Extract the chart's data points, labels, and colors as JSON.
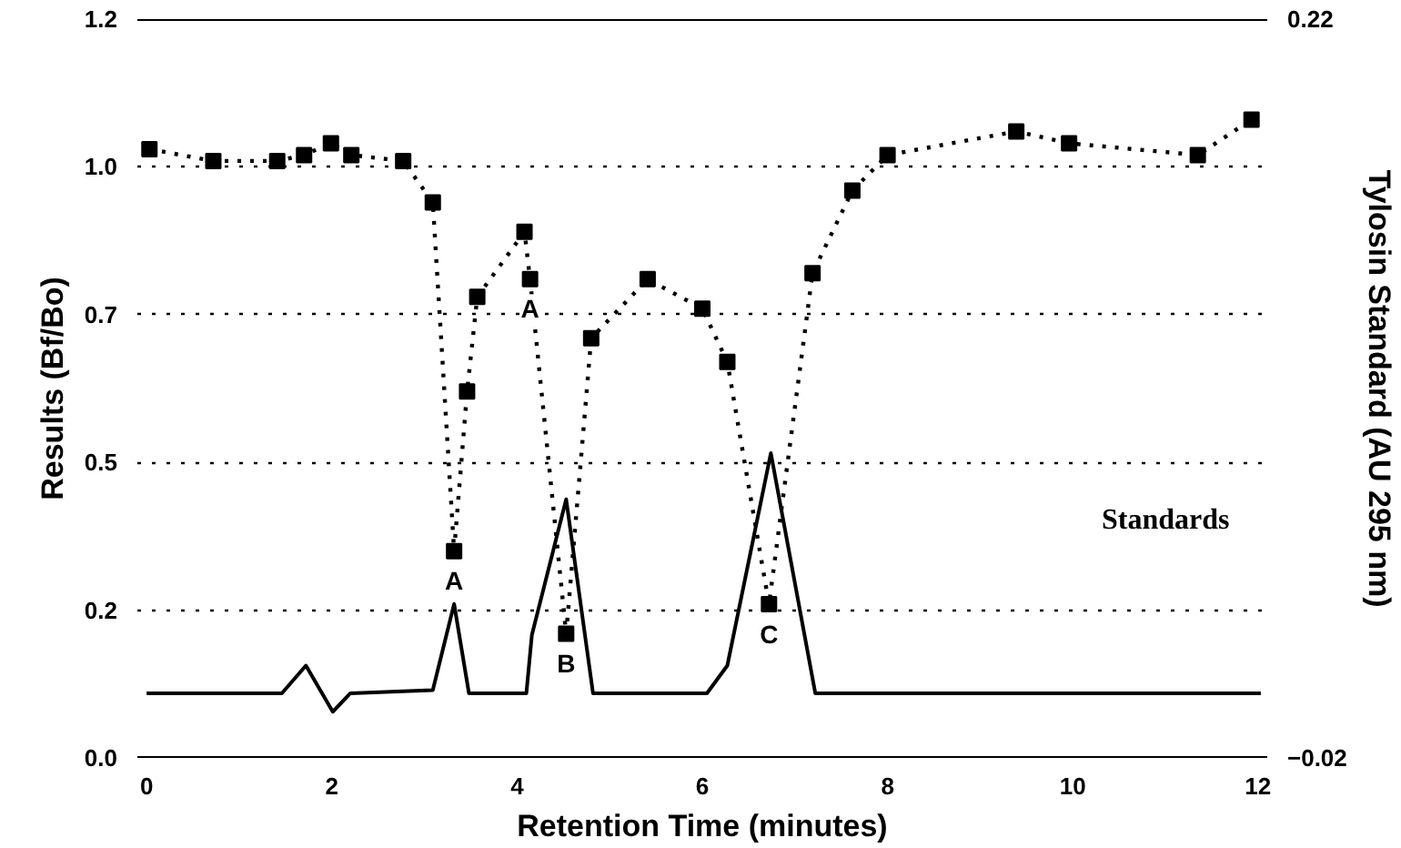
{
  "chart_data": {
    "type": "line",
    "xlabel": "Retention Time (minutes)",
    "ylabel": "Results (Bf/Bo)",
    "y2label": "Tylosin Standard (AU 295 nm)",
    "xlim": [
      -0.1,
      12.1
    ],
    "xticks": [
      0,
      2,
      4,
      6,
      8,
      10,
      12
    ],
    "ylim": [
      0,
      1.25
    ],
    "yticks": [
      {
        "value": 0,
        "label": "0.0"
      },
      {
        "value": 0.25,
        "label": "0.2"
      },
      {
        "value": 0.5,
        "label": "0.5"
      },
      {
        "value": 0.75,
        "label": "0.7"
      },
      {
        "value": 1.0,
        "label": "1.0"
      },
      {
        "value": 1.25,
        "label": "1.2"
      }
    ],
    "y2lim": [
      -0.02,
      0.22
    ],
    "y2ticks": [
      -0.02,
      0.22
    ],
    "grid": "y",
    "series": [
      {
        "color": "#000000",
        "marker": "square",
        "line_style": "dotted",
        "x": [
          0.03,
          0.72,
          1.41,
          1.7,
          1.99,
          2.21,
          2.77,
          3.09,
          3.32,
          3.46,
          3.57,
          4.08,
          4.14,
          4.53,
          4.8,
          5.41,
          6.0,
          6.27,
          6.72,
          7.19,
          7.62,
          8.0,
          9.39,
          9.96,
          11.35,
          11.93
        ],
        "values": [
          1.03,
          1.01,
          1.01,
          1.02,
          1.04,
          1.02,
          1.01,
          0.94,
          0.35,
          0.62,
          0.78,
          0.89,
          0.81,
          0.21,
          0.71,
          0.81,
          0.76,
          0.67,
          0.26,
          0.82,
          0.96,
          1.02,
          1.06,
          1.04,
          1.02,
          1.08
        ]
      },
      {
        "color": "#000000",
        "marker": "none",
        "line_style": "solid",
        "axis": "y2",
        "x": [
          0,
          1.46,
          1.72,
          2.01,
          2.2,
          3.09,
          3.32,
          3.48,
          4.1,
          4.16,
          4.53,
          4.82,
          6.05,
          6.27,
          6.74,
          7.22,
          12.03
        ],
        "values": [
          0.001,
          0.001,
          0.01,
          -0.005,
          0.001,
          0.002,
          0.03,
          0.001,
          0.001,
          0.02,
          0.064,
          0.001,
          0.001,
          0.01,
          0.079,
          0.001,
          0.001
        ]
      }
    ],
    "annotations": [
      {
        "text": "A",
        "x": 3.32,
        "y": 0.3
      },
      {
        "text": "A",
        "x": 4.14,
        "y": 0.76
      },
      {
        "text": "B",
        "x": 4.53,
        "y": 0.16
      },
      {
        "text": "C",
        "x": 6.72,
        "y": 0.21
      },
      "Standards"
    ]
  }
}
